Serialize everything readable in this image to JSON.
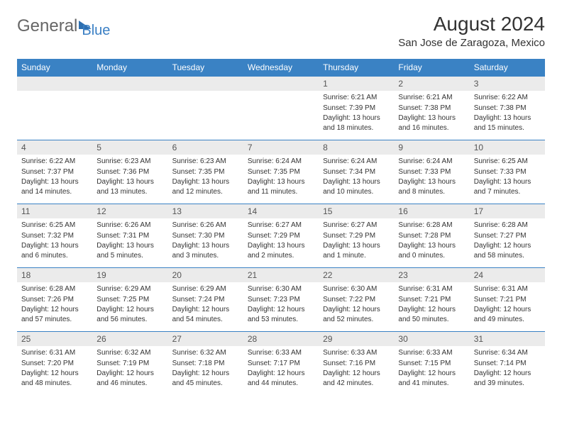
{
  "logo": {
    "part1": "General",
    "part2": "Blue"
  },
  "title": "August 2024",
  "location": "San Jose de Zaragoza, Mexico",
  "colors": {
    "header_bg": "#3a82c4",
    "header_text": "#ffffff",
    "daynum_bg": "#ebebeb",
    "body_text": "#333333",
    "rule": "#3a82c4"
  },
  "day_headers": [
    "Sunday",
    "Monday",
    "Tuesday",
    "Wednesday",
    "Thursday",
    "Friday",
    "Saturday"
  ],
  "weeks": [
    [
      null,
      null,
      null,
      null,
      {
        "n": "1",
        "sr": "6:21 AM",
        "ss": "7:39 PM",
        "dl": "13 hours and 18 minutes."
      },
      {
        "n": "2",
        "sr": "6:21 AM",
        "ss": "7:38 PM",
        "dl": "13 hours and 16 minutes."
      },
      {
        "n": "3",
        "sr": "6:22 AM",
        "ss": "7:38 PM",
        "dl": "13 hours and 15 minutes."
      }
    ],
    [
      {
        "n": "4",
        "sr": "6:22 AM",
        "ss": "7:37 PM",
        "dl": "13 hours and 14 minutes."
      },
      {
        "n": "5",
        "sr": "6:23 AM",
        "ss": "7:36 PM",
        "dl": "13 hours and 13 minutes."
      },
      {
        "n": "6",
        "sr": "6:23 AM",
        "ss": "7:35 PM",
        "dl": "13 hours and 12 minutes."
      },
      {
        "n": "7",
        "sr": "6:24 AM",
        "ss": "7:35 PM",
        "dl": "13 hours and 11 minutes."
      },
      {
        "n": "8",
        "sr": "6:24 AM",
        "ss": "7:34 PM",
        "dl": "13 hours and 10 minutes."
      },
      {
        "n": "9",
        "sr": "6:24 AM",
        "ss": "7:33 PM",
        "dl": "13 hours and 8 minutes."
      },
      {
        "n": "10",
        "sr": "6:25 AM",
        "ss": "7:33 PM",
        "dl": "13 hours and 7 minutes."
      }
    ],
    [
      {
        "n": "11",
        "sr": "6:25 AM",
        "ss": "7:32 PM",
        "dl": "13 hours and 6 minutes."
      },
      {
        "n": "12",
        "sr": "6:26 AM",
        "ss": "7:31 PM",
        "dl": "13 hours and 5 minutes."
      },
      {
        "n": "13",
        "sr": "6:26 AM",
        "ss": "7:30 PM",
        "dl": "13 hours and 3 minutes."
      },
      {
        "n": "14",
        "sr": "6:27 AM",
        "ss": "7:29 PM",
        "dl": "13 hours and 2 minutes."
      },
      {
        "n": "15",
        "sr": "6:27 AM",
        "ss": "7:29 PM",
        "dl": "13 hours and 1 minute."
      },
      {
        "n": "16",
        "sr": "6:28 AM",
        "ss": "7:28 PM",
        "dl": "13 hours and 0 minutes."
      },
      {
        "n": "17",
        "sr": "6:28 AM",
        "ss": "7:27 PM",
        "dl": "12 hours and 58 minutes."
      }
    ],
    [
      {
        "n": "18",
        "sr": "6:28 AM",
        "ss": "7:26 PM",
        "dl": "12 hours and 57 minutes."
      },
      {
        "n": "19",
        "sr": "6:29 AM",
        "ss": "7:25 PM",
        "dl": "12 hours and 56 minutes."
      },
      {
        "n": "20",
        "sr": "6:29 AM",
        "ss": "7:24 PM",
        "dl": "12 hours and 54 minutes."
      },
      {
        "n": "21",
        "sr": "6:30 AM",
        "ss": "7:23 PM",
        "dl": "12 hours and 53 minutes."
      },
      {
        "n": "22",
        "sr": "6:30 AM",
        "ss": "7:22 PM",
        "dl": "12 hours and 52 minutes."
      },
      {
        "n": "23",
        "sr": "6:31 AM",
        "ss": "7:21 PM",
        "dl": "12 hours and 50 minutes."
      },
      {
        "n": "24",
        "sr": "6:31 AM",
        "ss": "7:21 PM",
        "dl": "12 hours and 49 minutes."
      }
    ],
    [
      {
        "n": "25",
        "sr": "6:31 AM",
        "ss": "7:20 PM",
        "dl": "12 hours and 48 minutes."
      },
      {
        "n": "26",
        "sr": "6:32 AM",
        "ss": "7:19 PM",
        "dl": "12 hours and 46 minutes."
      },
      {
        "n": "27",
        "sr": "6:32 AM",
        "ss": "7:18 PM",
        "dl": "12 hours and 45 minutes."
      },
      {
        "n": "28",
        "sr": "6:33 AM",
        "ss": "7:17 PM",
        "dl": "12 hours and 44 minutes."
      },
      {
        "n": "29",
        "sr": "6:33 AM",
        "ss": "7:16 PM",
        "dl": "12 hours and 42 minutes."
      },
      {
        "n": "30",
        "sr": "6:33 AM",
        "ss": "7:15 PM",
        "dl": "12 hours and 41 minutes."
      },
      {
        "n": "31",
        "sr": "6:34 AM",
        "ss": "7:14 PM",
        "dl": "12 hours and 39 minutes."
      }
    ]
  ],
  "labels": {
    "sunrise": "Sunrise:",
    "sunset": "Sunset:",
    "daylight": "Daylight:"
  }
}
